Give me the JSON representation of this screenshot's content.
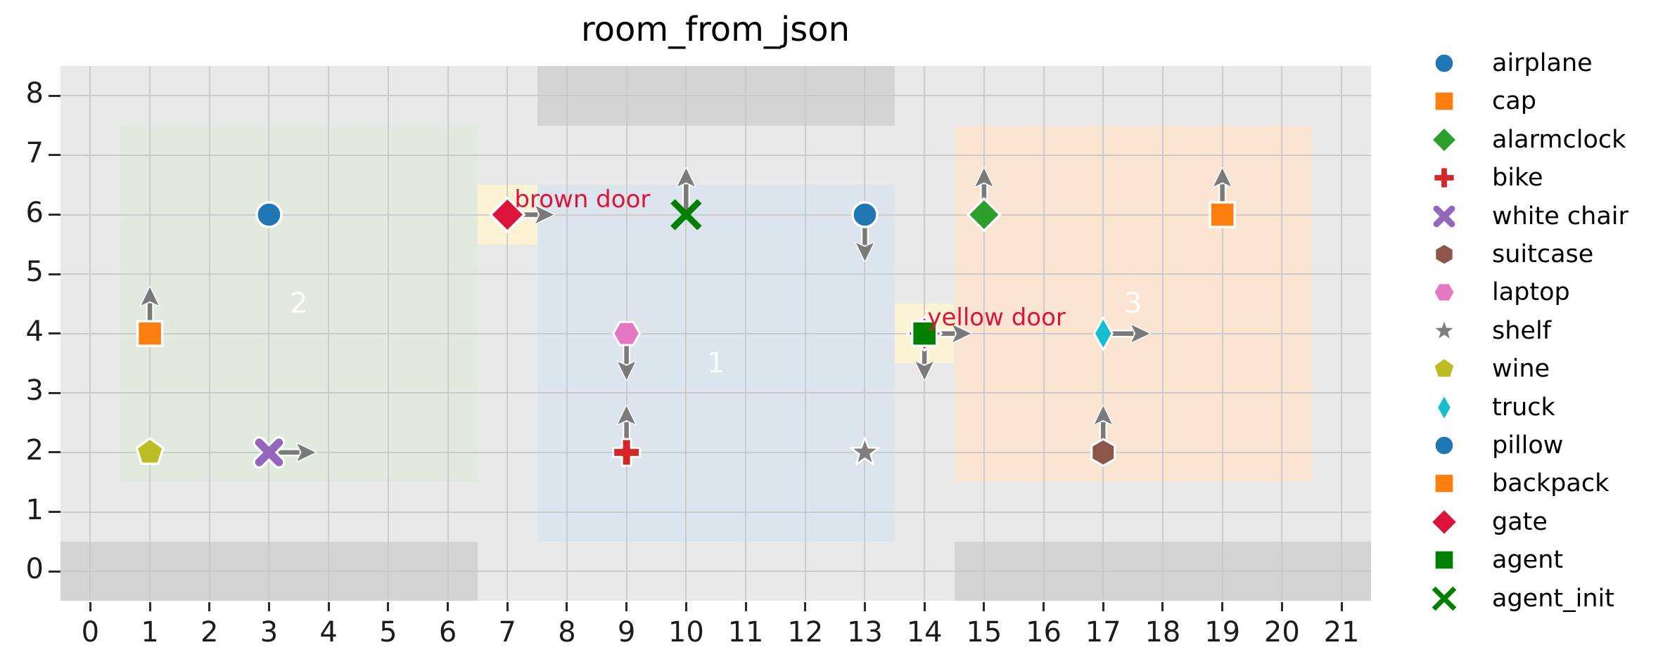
{
  "chart_data": {
    "type": "scatter",
    "title": "room_from_json",
    "x_ticks": [
      0,
      1,
      2,
      3,
      4,
      5,
      6,
      7,
      8,
      9,
      10,
      11,
      12,
      13,
      14,
      15,
      16,
      17,
      18,
      19,
      20,
      21
    ],
    "y_ticks": [
      0,
      1,
      2,
      3,
      4,
      5,
      6,
      7,
      8
    ],
    "xlim": [
      -0.5,
      21.5
    ],
    "ylim": [
      -0.5,
      8.5
    ],
    "grid": true,
    "legend_position": "right",
    "colors": {
      "figure_bg": "#ffffff",
      "axes_bg": "#e9e9e9",
      "wall": "#d4d4d4",
      "grid_line": "#c7c7c7",
      "arrow": "#7a7a7a",
      "tick_label": "#1c1c1c",
      "title": "#000000",
      "room_number": "rgba(255,255,255,0.88)",
      "door_label": "#dc143c",
      "door_highlight": "#fcf3d4"
    },
    "rooms": [
      {
        "label": "2",
        "x0": 0.5,
        "y0": 1.5,
        "x1": 6.5,
        "y1": 7.5,
        "fill": "#e2eae0",
        "label_pos": [
          3.5,
          4.5
        ]
      },
      {
        "label": "1",
        "x0": 7.5,
        "y0": 0.5,
        "x1": 13.5,
        "y1": 6.5,
        "fill": "#dce4ee",
        "label_pos": [
          10.5,
          3.5
        ]
      },
      {
        "label": "3",
        "x0": 14.5,
        "y0": 1.5,
        "x1": 20.5,
        "y1": 7.5,
        "fill": "#fae5d2",
        "label_pos": [
          17.5,
          4.5
        ]
      }
    ],
    "walls": [
      {
        "x0": -0.5,
        "y0": -0.5,
        "x1": 6.5,
        "y1": 0.5
      },
      {
        "x0": 14.5,
        "y0": -0.5,
        "x1": 21.5,
        "y1": 0.5
      },
      {
        "x0": 7.5,
        "y0": 7.5,
        "x1": 13.5,
        "y1": 8.5
      }
    ],
    "doors": [
      {
        "label": "brown door",
        "x": 7,
        "y": 6,
        "highlight": [
          6.5,
          5.5,
          7.5,
          6.5
        ],
        "label_pos": [
          7.12,
          6.25
        ]
      },
      {
        "label": "yellow door",
        "x": 14,
        "y": 4,
        "highlight": [
          13.5,
          3.5,
          14.5,
          4.5
        ],
        "label_pos": [
          14.05,
          4.27
        ]
      }
    ],
    "points": [
      {
        "name": "airplane",
        "marker": "circle",
        "color": "#1f77b4",
        "x": 3,
        "y": 6,
        "arrow": null
      },
      {
        "name": "cap",
        "marker": "square",
        "color": "#ff7f0e",
        "x": 1,
        "y": 4,
        "arrow": "up"
      },
      {
        "name": "wine",
        "marker": "pentagon",
        "color": "#bcbd22",
        "x": 1,
        "y": 2,
        "arrow": null
      },
      {
        "name": "white chair",
        "marker": "x",
        "color": "#9467bd",
        "x": 3,
        "y": 2,
        "arrow": "right"
      },
      {
        "name": "gate",
        "marker": "diamond",
        "color": "#dc143c",
        "x": 7,
        "y": 6,
        "arrow": "right"
      },
      {
        "name": "laptop",
        "marker": "hexagon-h",
        "color": "#e377c2",
        "x": 9,
        "y": 4,
        "arrow": "down"
      },
      {
        "name": "bike",
        "marker": "plus",
        "color": "#d62728",
        "x": 9,
        "y": 2,
        "arrow": "up"
      },
      {
        "name": "agent_init",
        "marker": "x-thin",
        "color": "#008000",
        "x": 10,
        "y": 6,
        "arrow": "up"
      },
      {
        "name": "pillow",
        "marker": "circle",
        "color": "#1f77b4",
        "x": 13,
        "y": 6,
        "arrow": "down"
      },
      {
        "name": "shelf",
        "marker": "star",
        "color": "#7f7f7f",
        "x": 13,
        "y": 2,
        "arrow": null
      },
      {
        "name": "gate",
        "marker": "diamond",
        "color": "#dc143c",
        "x": 14,
        "y": 4,
        "arrow": "down"
      },
      {
        "name": "agent",
        "marker": "square",
        "color": "#008000",
        "x": 14,
        "y": 4,
        "arrow": "right"
      },
      {
        "name": "alarmclock",
        "marker": "diamond-mid",
        "color": "#2ca02c",
        "x": 15,
        "y": 6,
        "arrow": "up"
      },
      {
        "name": "truck",
        "marker": "thin-diamond",
        "color": "#17becf",
        "x": 17,
        "y": 4,
        "arrow": "right"
      },
      {
        "name": "suitcase",
        "marker": "hexagon-v",
        "color": "#8c564b",
        "x": 17,
        "y": 2,
        "arrow": "up"
      },
      {
        "name": "backpack",
        "marker": "square",
        "color": "#ff7f0e",
        "x": 19,
        "y": 6,
        "arrow": "up"
      }
    ],
    "legend": {
      "items": [
        {
          "label": "airplane",
          "marker": "circle",
          "color": "#1f77b4"
        },
        {
          "label": "cap",
          "marker": "square",
          "color": "#ff7f0e"
        },
        {
          "label": "alarmclock",
          "marker": "diamond-mid",
          "color": "#2ca02c"
        },
        {
          "label": "bike",
          "marker": "plus",
          "color": "#d62728"
        },
        {
          "label": "white chair",
          "marker": "x",
          "color": "#9467bd"
        },
        {
          "label": "suitcase",
          "marker": "hexagon-v",
          "color": "#8c564b"
        },
        {
          "label": "laptop",
          "marker": "hexagon-h",
          "color": "#e377c2"
        },
        {
          "label": "shelf",
          "marker": "star",
          "color": "#7f7f7f"
        },
        {
          "label": "wine",
          "marker": "pentagon",
          "color": "#bcbd22"
        },
        {
          "label": "truck",
          "marker": "thin-diamond",
          "color": "#17becf"
        },
        {
          "label": "pillow",
          "marker": "circle",
          "color": "#1f77b4"
        },
        {
          "label": "backpack",
          "marker": "square",
          "color": "#ff7f0e"
        },
        {
          "label": "gate",
          "marker": "diamond",
          "color": "#dc143c"
        },
        {
          "label": "agent",
          "marker": "square",
          "color": "#008000"
        },
        {
          "label": "agent_init",
          "marker": "x-thin",
          "color": "#008000"
        }
      ]
    }
  }
}
